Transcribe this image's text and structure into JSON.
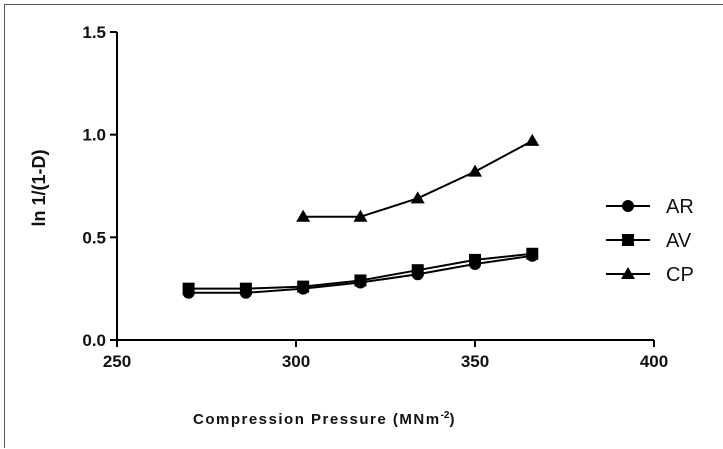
{
  "chart_data": {
    "type": "line",
    "xlabel_prefix": "Compression Pressure (MNm",
    "xlabel_superscript": "-2",
    "xlabel_suffix": ")",
    "ylabel": "ln 1/(1-D)",
    "xlim": [
      250,
      400
    ],
    "ylim": [
      0.0,
      1.5
    ],
    "x_ticks": [
      "250",
      "300",
      "350",
      "400"
    ],
    "y_ticks": [
      "0.0",
      "0.5",
      "1.0",
      "1.5"
    ],
    "legend_position": "right",
    "series": [
      {
        "name": "AR",
        "marker": "circle",
        "x": [
          270,
          286,
          302,
          318,
          334,
          350,
          366
        ],
        "y": [
          0.23,
          0.23,
          0.25,
          0.28,
          0.32,
          0.37,
          0.41
        ]
      },
      {
        "name": "AV",
        "marker": "square",
        "x": [
          270,
          286,
          302,
          318,
          334,
          350,
          366
        ],
        "y": [
          0.25,
          0.25,
          0.26,
          0.29,
          0.34,
          0.39,
          0.42
        ]
      },
      {
        "name": "CP",
        "marker": "triangle",
        "x": [
          302,
          318,
          334,
          350,
          366
        ],
        "y": [
          0.6,
          0.6,
          0.69,
          0.82,
          0.97
        ]
      }
    ]
  }
}
